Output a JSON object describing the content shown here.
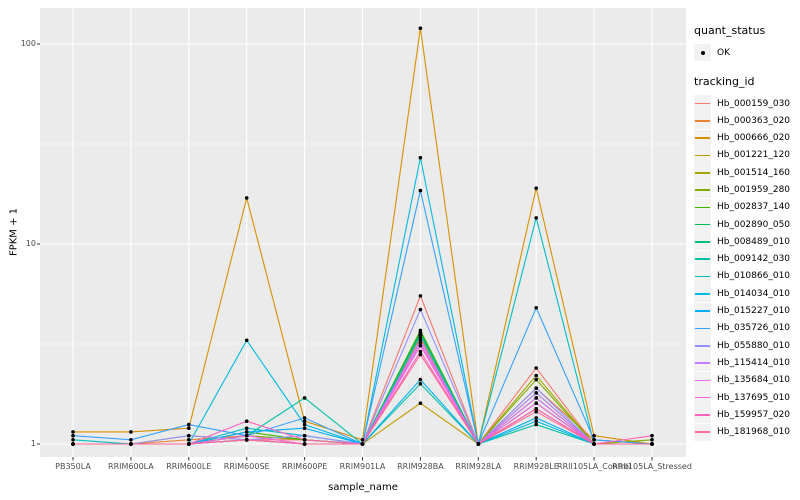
{
  "chart_data": {
    "type": "line",
    "xlabel": "sample_name",
    "ylabel": "FPKM + 1",
    "y_scale": "log10",
    "ylim": [
      1,
      130
    ],
    "y_ticks": [
      1,
      10,
      100
    ],
    "y_minor_ticks": [
      3.162,
      31.62
    ],
    "grid": true,
    "panel_bg": "#EBEBEB",
    "grid_color": "#FFFFFF",
    "point_color": "#000000",
    "axis_text_color": "#4d4d4d",
    "legend_position": "right",
    "categories": [
      "PB350LA",
      "RRIM600LA",
      "RRIM600LE",
      "RRIM600SE",
      "RRIM600PE",
      "RRIM901LA",
      "RRIM928BA",
      "RRIM928LA",
      "RRIM928LE",
      "RRII105LA_Control",
      "RRII105LA_Stressed"
    ],
    "series": [
      {
        "name": "Hb_000159_030",
        "color": "#F8766D",
        "values": [
          1,
          1,
          1,
          1.05,
          1.05,
          1,
          5.5,
          1,
          2.4,
          1,
          1
        ]
      },
      {
        "name": "Hb_000363_020",
        "color": "#EA8331",
        "values": [
          1,
          1,
          1.05,
          1.1,
          1.05,
          1,
          3.4,
          1,
          1.9,
          1.05,
          1
        ]
      },
      {
        "name": "Hb_000666_020",
        "color": "#D89000",
        "values": [
          1.15,
          1.15,
          1.2,
          17,
          1.3,
          1.05,
          120,
          1,
          19,
          1.1,
          1
        ]
      },
      {
        "name": "Hb_001221_120",
        "color": "#C09B00",
        "values": [
          1,
          1,
          1.1,
          1.05,
          1,
          1,
          1.6,
          1,
          1.5,
          1,
          1
        ]
      },
      {
        "name": "Hb_001514_160",
        "color": "#A3A500",
        "values": [
          1,
          1,
          1,
          1.05,
          1,
          1,
          3.5,
          1,
          2.2,
          1,
          1
        ]
      },
      {
        "name": "Hb_001959_280",
        "color": "#7CAE00",
        "values": [
          1,
          1,
          1,
          1.1,
          1.05,
          1,
          3.6,
          1,
          2.1,
          1,
          1.05
        ]
      },
      {
        "name": "Hb_002837_140",
        "color": "#39B600",
        "values": [
          1,
          1,
          1,
          1.15,
          1.05,
          1,
          3.7,
          1,
          1.8,
          1,
          1
        ]
      },
      {
        "name": "Hb_002890_050",
        "color": "#00BB4E",
        "values": [
          1,
          1,
          1,
          1.05,
          1,
          1,
          3.6,
          1,
          1.7,
          1,
          1
        ]
      },
      {
        "name": "Hb_008489_010",
        "color": "#00BF7D",
        "values": [
          1,
          1,
          1,
          1.05,
          1,
          1,
          3.5,
          1,
          1.6,
          1,
          1
        ]
      },
      {
        "name": "Hb_009142_030",
        "color": "#00C1A3",
        "values": [
          1,
          1,
          1,
          1.1,
          1.7,
          1,
          2.0,
          1,
          1.25,
          1,
          1
        ]
      },
      {
        "name": "Hb_010866_010",
        "color": "#00BFC4",
        "values": [
          1.05,
          1,
          1,
          1.2,
          1.1,
          1,
          3.5,
          1,
          13.5,
          1,
          1
        ]
      },
      {
        "name": "Hb_014034_010",
        "color": "#00BAE0",
        "values": [
          1,
          1,
          1,
          3.3,
          1.25,
          1,
          27,
          1,
          1.3,
          1,
          1
        ]
      },
      {
        "name": "Hb_015227_010",
        "color": "#00B0F6",
        "values": [
          1,
          1,
          1,
          1.15,
          1.2,
          1,
          2.1,
          1,
          1.35,
          1,
          1
        ]
      },
      {
        "name": "Hb_035726_010",
        "color": "#35A2FF",
        "values": [
          1.1,
          1.05,
          1.25,
          1.1,
          1.35,
          1,
          18.5,
          1,
          4.8,
          1.05,
          1
        ]
      },
      {
        "name": "Hb_055880_010",
        "color": "#9590FF",
        "values": [
          1,
          1,
          1.1,
          1.05,
          1.1,
          1,
          4.7,
          1,
          1.9,
          1,
          1
        ]
      },
      {
        "name": "Hb_115414_010",
        "color": "#C77CFF",
        "values": [
          1,
          1,
          1,
          1.05,
          1,
          1,
          3.3,
          1,
          1.8,
          1,
          1
        ]
      },
      {
        "name": "Hb_135684_010",
        "color": "#E76BF3",
        "values": [
          1,
          1,
          1,
          1.05,
          1,
          1,
          3.2,
          1,
          1.7,
          1,
          1
        ]
      },
      {
        "name": "Hb_137695_010",
        "color": "#FA62DB",
        "values": [
          1,
          1,
          1,
          1.1,
          1,
          1,
          3.1,
          1,
          1.6,
          1,
          1
        ]
      },
      {
        "name": "Hb_159957_020",
        "color": "#FF62BC",
        "values": [
          1,
          1,
          1,
          1.3,
          1.05,
          1,
          2.9,
          1,
          1.5,
          1,
          1.1
        ]
      },
      {
        "name": "Hb_181968_010",
        "color": "#FF6A98",
        "values": [
          1,
          1,
          1,
          1.05,
          1,
          1,
          2.8,
          1,
          1.45,
          1,
          1
        ]
      }
    ]
  },
  "legend": {
    "quant_status": {
      "title": "quant_status",
      "items": [
        {
          "label": "OK",
          "symbol": "point"
        }
      ]
    },
    "tracking": {
      "title": "tracking_id"
    }
  }
}
